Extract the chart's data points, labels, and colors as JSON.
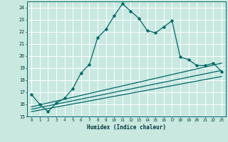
{
  "xlabel": "Humidex (Indice chaleur)",
  "ylabel": "",
  "bg_color": "#c8e8e0",
  "grid_color": "#ffffff",
  "line_color": "#006868",
  "xlim": [
    -0.5,
    23.5
  ],
  "ylim": [
    15,
    24.5
  ],
  "yticks": [
    15,
    16,
    17,
    18,
    19,
    20,
    21,
    22,
    23,
    24
  ],
  "xticks": [
    0,
    1,
    2,
    3,
    4,
    5,
    6,
    7,
    8,
    9,
    10,
    11,
    12,
    13,
    14,
    15,
    16,
    17,
    18,
    19,
    20,
    21,
    22,
    23
  ],
  "main_series_x": [
    0,
    1,
    2,
    3,
    4,
    5,
    6,
    7,
    8,
    9,
    10,
    11,
    12,
    13,
    14,
    15,
    16,
    17,
    18,
    19,
    20,
    21,
    22,
    23
  ],
  "main_series_y": [
    16.8,
    16.0,
    15.4,
    16.1,
    16.5,
    17.3,
    18.6,
    19.3,
    21.5,
    22.2,
    23.3,
    24.3,
    23.7,
    23.1,
    22.1,
    21.9,
    22.4,
    22.9,
    19.9,
    19.7,
    19.2,
    19.2,
    19.4,
    18.7
  ],
  "line1_x": [
    0,
    23
  ],
  "line1_y": [
    15.8,
    19.4
  ],
  "line2_x": [
    0,
    23
  ],
  "line2_y": [
    15.6,
    18.8
  ],
  "line3_x": [
    0,
    23
  ],
  "line3_y": [
    15.4,
    18.3
  ]
}
